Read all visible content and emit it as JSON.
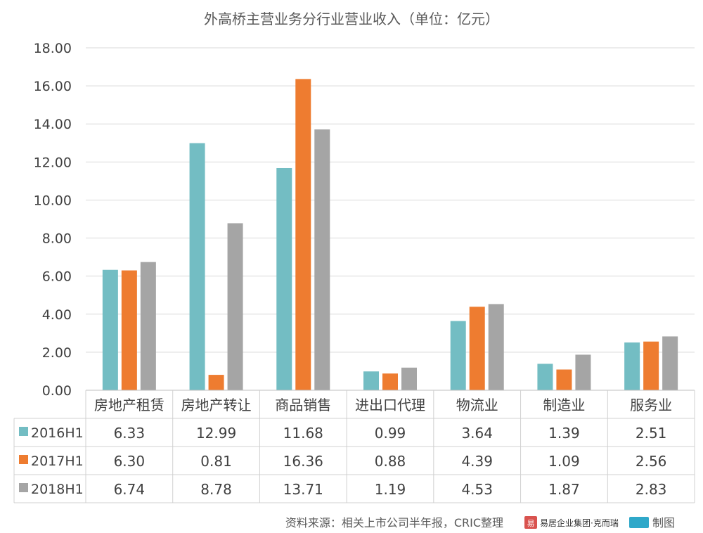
{
  "chart_data": {
    "type": "bar",
    "title": "外高桥主营业务分行业营业收入（单位：亿元）",
    "categories": [
      "房地产租赁",
      "房地产转让",
      "商品销售",
      "进出口代理",
      "物流业",
      "制造业",
      "服务业"
    ],
    "series": [
      {
        "name": "2016H1",
        "color": "#73BDC3",
        "values": [
          6.33,
          12.99,
          11.68,
          0.99,
          3.64,
          1.39,
          2.51
        ],
        "labels": [
          "6.33",
          "12.99",
          "11.68",
          "0.99",
          "3.64",
          "1.39",
          "2.51"
        ]
      },
      {
        "name": "2017H1",
        "color": "#EE7C30",
        "values": [
          6.3,
          0.81,
          16.36,
          0.88,
          4.39,
          1.09,
          2.56
        ],
        "labels": [
          "6.30",
          "0.81",
          "16.36",
          "0.88",
          "4.39",
          "1.09",
          "2.56"
        ]
      },
      {
        "name": "2018H1",
        "color": "#A5A5A5",
        "values": [
          6.74,
          8.78,
          13.71,
          1.19,
          4.53,
          1.87,
          2.83
        ],
        "labels": [
          "6.74",
          "8.78",
          "13.71",
          "1.19",
          "4.53",
          "1.87",
          "2.83"
        ]
      }
    ],
    "ylim": [
      0,
      18
    ],
    "yticks": [
      "0.00",
      "2.00",
      "4.00",
      "6.00",
      "8.00",
      "10.00",
      "12.00",
      "14.00",
      "16.00",
      "18.00"
    ],
    "grid": true,
    "legend": "data-table"
  },
  "footer": {
    "source": "资料来源：相关上市公司半年报，CRIC整理",
    "logo_text": "易居企业集团·克而瑞",
    "made": "制图"
  }
}
